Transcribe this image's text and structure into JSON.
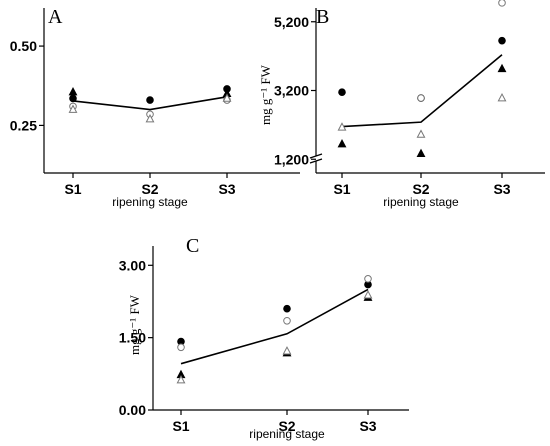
{
  "chart_data": [
    {
      "panel": "A",
      "type": "scatter",
      "categories": [
        "S1",
        "S2",
        "S3"
      ],
      "xlabel": "ripening stage",
      "ylabel": "",
      "ylim": [
        0.1,
        0.62
      ],
      "yticks": [
        {
          "value": 0.25,
          "label": "0.25"
        },
        {
          "value": 0.5,
          "label": "0.50"
        }
      ],
      "mean_line": [
        0.327,
        0.3,
        0.34
      ],
      "series": [
        {
          "symbol": "filled-circle",
          "values": [
            0.335,
            0.33,
            0.365
          ]
        },
        {
          "symbol": "open-circle",
          "values": [
            0.31,
            0.285,
            0.33
          ]
        },
        {
          "symbol": "filled-triangle",
          "values": [
            0.355,
            null,
            0.35
          ]
        },
        {
          "symbol": "open-triangle",
          "values": [
            0.3,
            0.27,
            0.335
          ]
        }
      ]
    },
    {
      "panel": "B",
      "type": "scatter",
      "categories": [
        "S1",
        "S2",
        "S3"
      ],
      "xlabel": "ripening stage",
      "ylabel": "mg g⁻¹ FW",
      "ylim": [
        800,
        5600
      ],
      "y_break": true,
      "yticks": [
        {
          "value": 1200,
          "label": "1,200"
        },
        {
          "value": 3200,
          "label": "3,200"
        },
        {
          "value": 5200,
          "label": "5,200"
        }
      ],
      "mean_line": [
        2150,
        2280,
        4240
      ],
      "series": [
        {
          "symbol": "filled-circle",
          "values": [
            3150,
            2980,
            4650
          ]
        },
        {
          "symbol": "open-circle",
          "values": [
            null,
            2980,
            5750
          ]
        },
        {
          "symbol": "filled-triangle",
          "values": [
            1640,
            1360,
            3830
          ]
        },
        {
          "symbol": "open-triangle",
          "values": [
            2130,
            1920,
            2980
          ]
        }
      ]
    },
    {
      "panel": "C",
      "type": "scatter",
      "categories": [
        "S1",
        "S2",
        "S3"
      ],
      "xlabel": "ripening stage",
      "ylabel": "mg g⁻¹ FW",
      "ylim": [
        0,
        3.4
      ],
      "yticks": [
        {
          "value": 0,
          "label": "0.00"
        },
        {
          "value": 1.5,
          "label": "1.50"
        },
        {
          "value": 3.0,
          "label": "3.00"
        }
      ],
      "mean_line": [
        0.96,
        1.58,
        2.5
      ],
      "series": [
        {
          "symbol": "filled-circle",
          "values": [
            1.42,
            2.1,
            2.6
          ]
        },
        {
          "symbol": "open-circle",
          "values": [
            1.3,
            1.85,
            2.72
          ]
        },
        {
          "symbol": "filled-triangle",
          "values": [
            0.73,
            1.18,
            2.33
          ]
        },
        {
          "symbol": "open-triangle",
          "values": [
            0.62,
            1.22,
            2.38
          ]
        }
      ]
    }
  ]
}
